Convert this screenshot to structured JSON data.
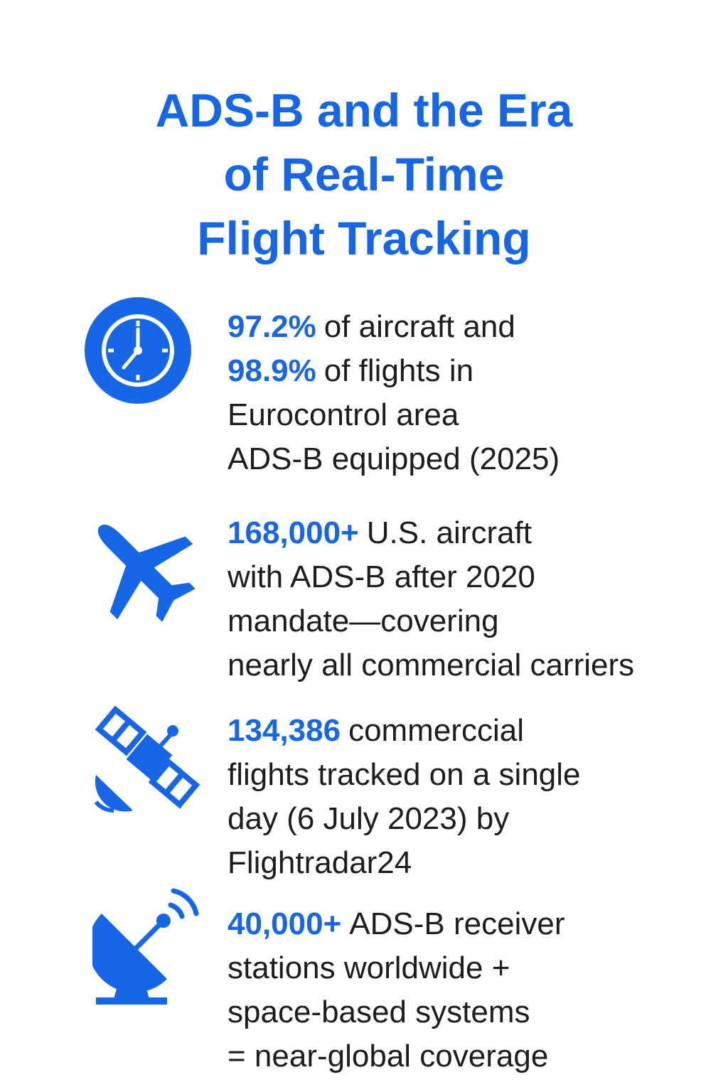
{
  "header": {
    "title_lines": [
      "ADS-B and the Era",
      "of Real-Time",
      "Flight Tracking"
    ]
  },
  "items": [
    {
      "lines": [
        {
          "strong": "97.2%",
          "rest": "of aircraft and"
        },
        {
          "strong": "98.9%",
          "rest": "of flights in"
        },
        {
          "rest": "Eurocontrol area"
        },
        {
          "rest": "ADS-B equipped (2025)"
        }
      ]
    },
    {
      "lines": [
        {
          "strong": "168,000+",
          "rest": "U.S. aircraft"
        },
        {
          "rest": "with ADS-B after 2020"
        },
        {
          "rest": "mandate—covering"
        },
        {
          "rest": "nearly all commercial carriers"
        }
      ]
    },
    {
      "lines": [
        {
          "strong": "134,386",
          "rest": "commerccial"
        },
        {
          "rest": "flights tracked on a single"
        },
        {
          "rest": "day (6 July 2023) by"
        },
        {
          "rest": "Flightradar24"
        }
      ]
    },
    {
      "lines": [
        {
          "strong": "40,000+",
          "rest": "ADS-B receiver"
        },
        {
          "rest": "stations worldwide +"
        },
        {
          "rest": "space-based systems"
        },
        {
          "rest": "= near-global coverage"
        }
      ]
    }
  ]
}
